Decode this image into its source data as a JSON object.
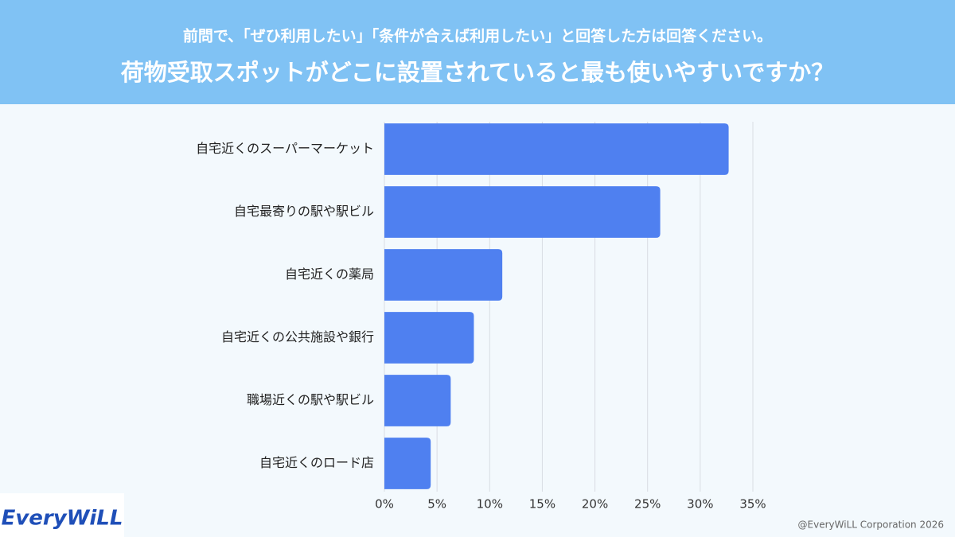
{
  "chart_data": {
    "type": "barh",
    "subtitle": "前問で、「ぜひ利用したい」「条件が合えば利用したい」と回答した方は回答ください。",
    "title": "荷物受取スポットがどこに設置されていると最も使いやすいですか？",
    "categories": [
      "自宅近くのスーパーマーケット",
      "自宅最寄りの駅や駅ビル",
      "自宅近くの薬局",
      "自宅近くの公共施設や銀行",
      "職場近くの駅や駅ビル",
      "自宅近くのロード店"
    ],
    "values": [
      32.7,
      26.2,
      11.2,
      8.5,
      6.3,
      4.4
    ],
    "color": "#4f80f0",
    "xlim": [
      0,
      35
    ],
    "xticks": [
      {
        "value": 0,
        "label": "0%"
      },
      {
        "value": 5,
        "label": "5%"
      },
      {
        "value": 10,
        "label": "10%"
      },
      {
        "value": 15,
        "label": "15%"
      },
      {
        "value": 20,
        "label": "20%"
      },
      {
        "value": 25,
        "label": "25%"
      },
      {
        "value": 30,
        "label": "30%"
      },
      {
        "value": 35,
        "label": "35%"
      }
    ],
    "grid": true
  },
  "branding": {
    "logo": "EveryWiLL",
    "credit": "@EveryWiLL Corporation 2026"
  }
}
